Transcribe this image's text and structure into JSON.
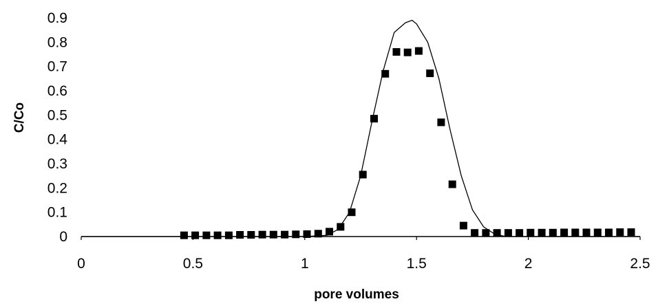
{
  "chart_data": {
    "type": "scatter",
    "title": "",
    "xlabel": "pore volumes",
    "ylabel": "C/Co",
    "xlim": [
      0,
      2.5
    ],
    "ylim": [
      0,
      0.9
    ],
    "x_ticks": [
      "0",
      "0.5",
      "1",
      "1.5",
      "2",
      "2.5"
    ],
    "y_ticks": [
      "0",
      "0.1",
      "0.2",
      "0.3",
      "0.4",
      "0.5",
      "0.6",
      "0.7",
      "0.8",
      "0.9"
    ],
    "grid": false,
    "legend": "none",
    "series": [
      {
        "kind": "scatter",
        "marker": "square",
        "color": "#000000",
        "x": [
          0.46,
          0.51,
          0.56,
          0.61,
          0.66,
          0.71,
          0.76,
          0.81,
          0.86,
          0.91,
          0.96,
          1.01,
          1.06,
          1.11,
          1.16,
          1.21,
          1.26,
          1.31,
          1.36,
          1.41,
          1.46,
          1.51,
          1.56,
          1.61,
          1.66,
          1.71,
          1.76,
          1.81,
          1.86,
          1.91,
          1.96,
          2.01,
          2.06,
          2.11,
          2.16,
          2.21,
          2.26,
          2.31,
          2.36,
          2.41,
          2.46
        ],
        "y": [
          0.005,
          0.005,
          0.005,
          0.005,
          0.005,
          0.007,
          0.007,
          0.008,
          0.008,
          0.008,
          0.009,
          0.01,
          0.012,
          0.02,
          0.04,
          0.1,
          0.255,
          0.485,
          0.67,
          0.76,
          0.758,
          0.764,
          0.672,
          0.47,
          0.215,
          0.045,
          0.015,
          0.015,
          0.015,
          0.015,
          0.015,
          0.016,
          0.016,
          0.016,
          0.017,
          0.017,
          0.017,
          0.017,
          0.017,
          0.018,
          0.018
        ]
      },
      {
        "kind": "line",
        "color": "#000000",
        "x": [
          0,
          0.5,
          1.0,
          1.1,
          1.15,
          1.2,
          1.25,
          1.3,
          1.35,
          1.4,
          1.45,
          1.48,
          1.5,
          1.55,
          1.6,
          1.65,
          1.7,
          1.75,
          1.8,
          1.85,
          1.9,
          2.0,
          2.5
        ],
        "y": [
          0,
          0,
          0,
          0.005,
          0.03,
          0.1,
          0.25,
          0.47,
          0.68,
          0.84,
          0.88,
          0.89,
          0.875,
          0.8,
          0.65,
          0.44,
          0.25,
          0.11,
          0.04,
          0.01,
          0,
          0,
          0
        ]
      }
    ]
  }
}
